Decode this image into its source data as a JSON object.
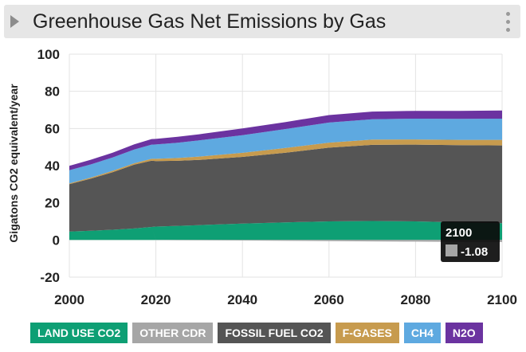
{
  "header": {
    "title": "Greenhouse Gas Net Emissions by Gas",
    "toggle_icon": "triangle-right-icon",
    "menu_icon": "vertical-dots-icon"
  },
  "chart_data": {
    "type": "area",
    "stacked": true,
    "title": "Greenhouse Gas Net Emissions by Gas",
    "xlabel": "",
    "ylabel": "Gigatons CO2 equivalent/year",
    "xlim": [
      2000,
      2100
    ],
    "ylim": [
      -20,
      100
    ],
    "xticks": [
      2000,
      2020,
      2040,
      2060,
      2080,
      2100
    ],
    "yticks": [
      100,
      80,
      60,
      40,
      20,
      0,
      -20
    ],
    "grid": true,
    "x": [
      2000,
      2005,
      2010,
      2015,
      2019,
      2020,
      2025,
      2030,
      2040,
      2050,
      2060,
      2070,
      2080,
      2090,
      2100
    ],
    "series": [
      {
        "name": "LAND USE CO2",
        "color": "#0e9f74",
        "values": [
          4.5,
          5,
          5.5,
          6.2,
          7,
          7.2,
          7.6,
          8,
          8.8,
          9.5,
          10,
          10.2,
          10,
          9.5,
          9
        ]
      },
      {
        "name": "OTHER CDR",
        "color": "#a6a6a6",
        "values": [
          0,
          0,
          0,
          0,
          0,
          -0.05,
          -0.1,
          -0.15,
          -0.3,
          -0.45,
          -0.6,
          -0.75,
          -0.9,
          -1.0,
          -1.08
        ]
      },
      {
        "name": "FOSSIL FUEL CO2",
        "color": "#555555",
        "values": [
          25.5,
          28,
          31,
          34.3,
          35.7,
          35.3,
          35,
          35.1,
          35.9,
          37.5,
          39.7,
          41,
          41.3,
          41.5,
          41.9
        ]
      },
      {
        "name": "F-GASES",
        "color": "#c79b4e",
        "values": [
          0.5,
          0.6,
          0.7,
          0.8,
          1,
          1.2,
          1.5,
          1.8,
          2.2,
          2.5,
          2.7,
          2.8,
          2.8,
          2.9,
          3
        ]
      },
      {
        "name": "CH4",
        "color": "#5ea9e0",
        "values": [
          7,
          7.1,
          7.2,
          7.4,
          7.6,
          7.7,
          8.2,
          8.7,
          9.5,
          10.2,
          10.8,
          11,
          11.2,
          11.3,
          11.4
        ]
      },
      {
        "name": "N2O",
        "color": "#6b33a0",
        "values": [
          2.4,
          2.5,
          2.6,
          2.8,
          3,
          3,
          3.2,
          3.3,
          3.6,
          3.8,
          4,
          4.1,
          4.2,
          4.3,
          4.4
        ]
      }
    ],
    "tooltip": {
      "year": "2100",
      "value": "-1.08",
      "swatch_color": "#a6a6a6"
    }
  },
  "legend": {
    "items": [
      {
        "label": "LAND USE CO2",
        "color": "#0e9f74"
      },
      {
        "label": "OTHER CDR",
        "color": "#a6a6a6"
      },
      {
        "label": "FOSSIL FUEL CO2",
        "color": "#555555"
      },
      {
        "label": "F-GASES",
        "color": "#c79b4e"
      },
      {
        "label": "CH4",
        "color": "#5ea9e0"
      },
      {
        "label": "N2O",
        "color": "#6b33a0"
      }
    ]
  }
}
